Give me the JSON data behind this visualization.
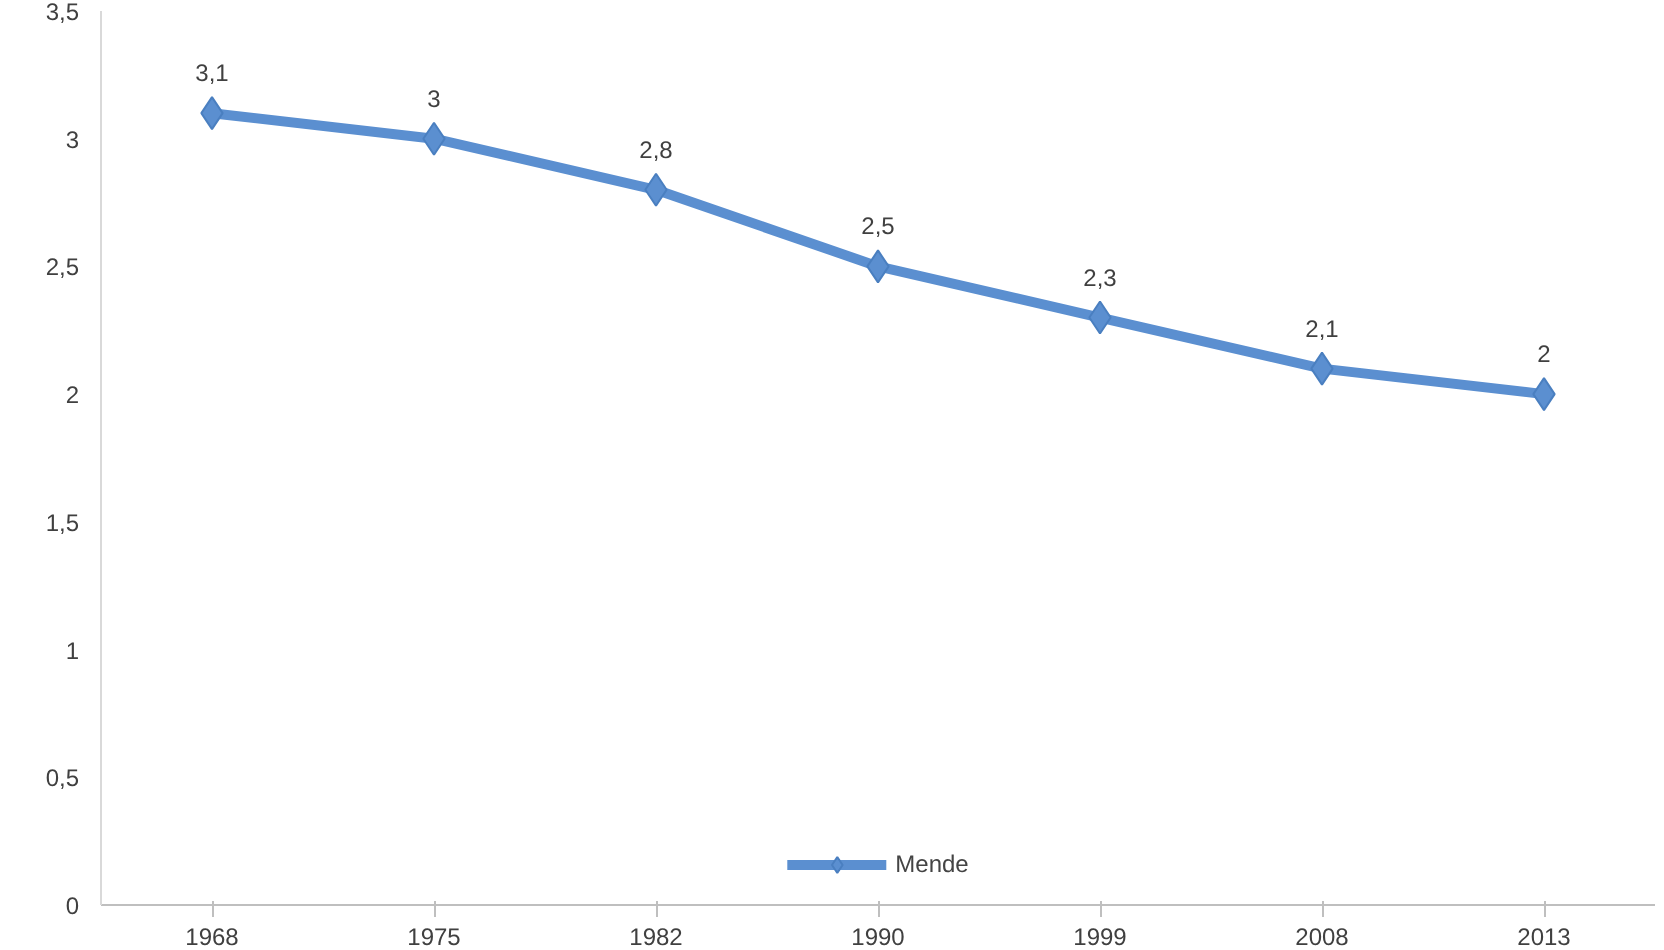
{
  "chart_data": {
    "type": "line",
    "categories": [
      "1968",
      "1975",
      "1982",
      "1990",
      "1999",
      "2008",
      "2013"
    ],
    "series": [
      {
        "name": "Mende",
        "color": "#5b8fd0",
        "values": [
          3.1,
          3.0,
          2.8,
          2.5,
          2.3,
          2.1,
          2.0
        ],
        "value_labels": [
          "3,1",
          "3",
          "2,8",
          "2,5",
          "2,3",
          "2,1",
          "2"
        ]
      }
    ],
    "ylim": [
      0,
      3.5
    ],
    "yticks": [
      0,
      {
        "value": 0.5,
        "label": "0,5"
      },
      1,
      {
        "value": 1.5,
        "label": "1,5"
      },
      2,
      {
        "value": 2.5,
        "label": "2,5"
      },
      3,
      {
        "value": 3.5,
        "label": "3,5"
      }
    ],
    "grid": false,
    "legend": "bottom",
    "marker": "diamond",
    "line_style": "solid"
  }
}
